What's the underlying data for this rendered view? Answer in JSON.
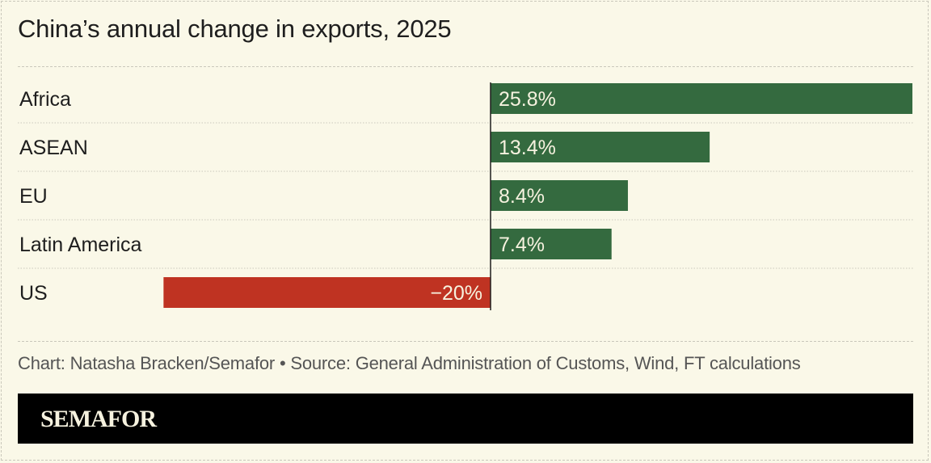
{
  "title": "China’s annual change in exports, 2025",
  "chart_data": {
    "type": "bar",
    "orientation": "horizontal",
    "categories": [
      "Africa",
      "ASEAN",
      "EU",
      "Latin America",
      "US"
    ],
    "values": [
      25.8,
      13.4,
      8.4,
      7.4,
      -20
    ],
    "labels": [
      "25.8%",
      "13.4%",
      "8.4%",
      "7.4%",
      "−20%"
    ],
    "unit": "%",
    "colors": {
      "positive": "#346a3f",
      "negative": "#bf3322"
    },
    "xlim": [
      -20,
      25.8
    ],
    "grid": false,
    "legend": "none"
  },
  "footer": "Chart: Natasha Bracken/Semafor • Source: General Administration of Customs, Wind, FT calculations",
  "brand": "SEMAFOR"
}
